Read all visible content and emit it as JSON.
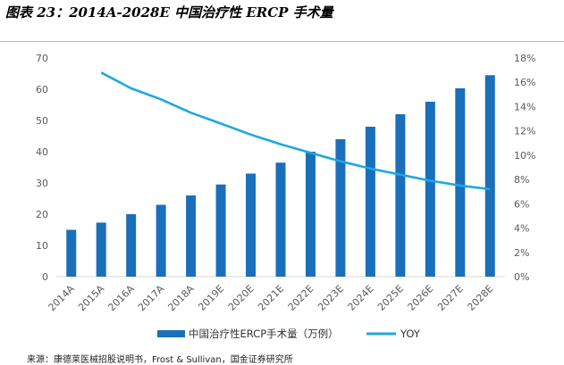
{
  "chart_data": {
    "type": "bar",
    "title": "图表 23：2014A-2028E 中国治疗性 ERCP 手术量",
    "categories": [
      "2014A",
      "2015A",
      "2016A",
      "2017A",
      "2018A",
      "2019E",
      "2020E",
      "2021E",
      "2022E",
      "2023E",
      "2024E",
      "2025E",
      "2026E",
      "2027E",
      "2028E"
    ],
    "series": [
      {
        "name": "中国治疗性ERCP手术量（万例）",
        "type": "bar",
        "axis": "left",
        "color": "#1a6fbb",
        "values": [
          15,
          17.3,
          20,
          23,
          26,
          29.5,
          33,
          36.5,
          40,
          44,
          48,
          52,
          56,
          60.3,
          64.5
        ]
      },
      {
        "name": "YOY",
        "type": "line",
        "axis": "right",
        "color": "#1ea7e1",
        "values": [
          null,
          16.8,
          15.5,
          14.6,
          13.5,
          12.6,
          11.7,
          10.9,
          10.2,
          9.5,
          8.9,
          8.4,
          7.9,
          7.5,
          7.2
        ]
      }
    ],
    "y_left": {
      "min": 0,
      "max": 70,
      "step": 10,
      "ticks": [
        "0",
        "10",
        "20",
        "30",
        "40",
        "50",
        "60",
        "70"
      ]
    },
    "y_right": {
      "min": 0,
      "max": 18,
      "step": 2,
      "ticks": [
        "0%",
        "2%",
        "4%",
        "6%",
        "8%",
        "10%",
        "12%",
        "14%",
        "16%",
        "18%"
      ]
    },
    "grid": false,
    "legend_position": "bottom"
  },
  "source": "来源：康德莱医械招股说明书，Frost & Sullivan，国金证券研究所"
}
